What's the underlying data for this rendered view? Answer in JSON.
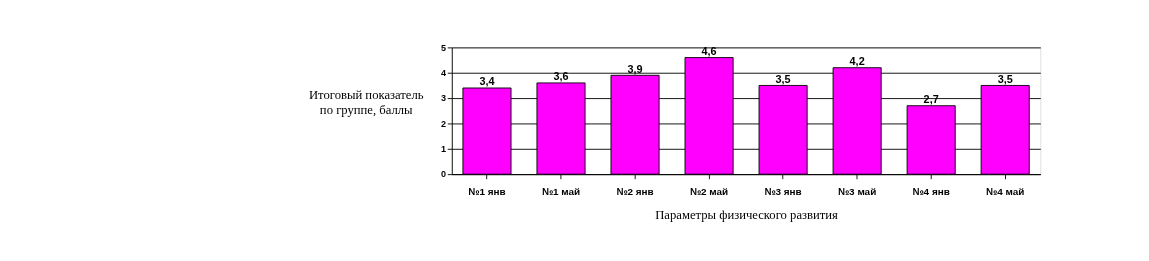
{
  "chart_data": {
    "type": "bar",
    "xlabel": "Параметры физического развития",
    "ylabel": "Итоговый показатель по группе, баллы",
    "categories": [
      "№1 янв",
      "№1 май",
      "№2 янв",
      "№2 май",
      "№3 янв",
      "№3 май",
      "№4 янв",
      "№4 май"
    ],
    "values": [
      3.4,
      3.6,
      3.9,
      4.6,
      3.5,
      4.2,
      2.7,
      3.5
    ],
    "value_labels": [
      "3,4",
      "3,6",
      "3,9",
      "4,6",
      "3,5",
      "4,2",
      "2,7",
      "3,5"
    ],
    "color": "#ff00ff",
    "ylim": [
      0,
      5
    ],
    "yticks": [
      0,
      1,
      2,
      3,
      4,
      5
    ],
    "grid": "y"
  }
}
